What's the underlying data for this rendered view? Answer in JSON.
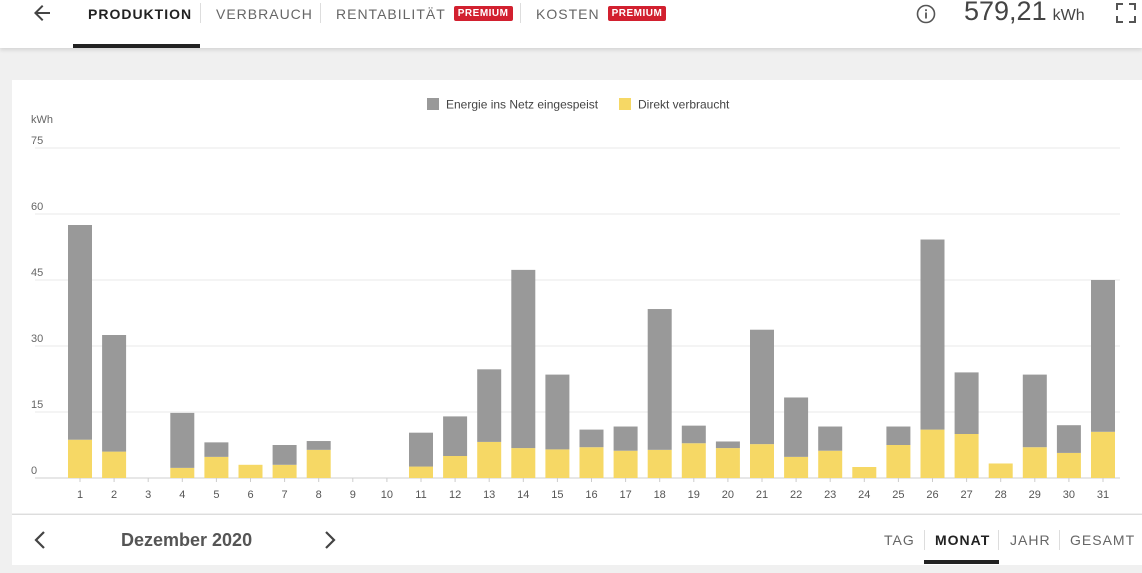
{
  "header": {
    "tabs": [
      {
        "label": "PRODUKTION",
        "active": true,
        "badge": ""
      },
      {
        "label": "VERBRAUCH",
        "active": false,
        "badge": ""
      },
      {
        "label": "RENTABILITÄT",
        "active": false,
        "badge": "PREMIUM"
      },
      {
        "label": "KOSTEN",
        "active": false,
        "badge": "PREMIUM"
      }
    ],
    "total_value": "579,21",
    "total_unit": "kWh"
  },
  "footer": {
    "period_label": "Dezember 2020",
    "range_tabs": [
      {
        "label": "TAG",
        "active": false
      },
      {
        "label": "MONAT",
        "active": true
      },
      {
        "label": "JAHR",
        "active": false
      },
      {
        "label": "GESAMT",
        "active": false
      }
    ]
  },
  "colors": {
    "grid": "#999999",
    "direct": "#f6d865",
    "badge": "#d2202f"
  },
  "icons": {
    "back": "arrow-left-icon",
    "info": "info-icon",
    "fullscreen": "fullscreen-icon",
    "prev": "chevron-left-icon",
    "next": "chevron-right-icon"
  },
  "chart_data": {
    "type": "bar",
    "stacked": true,
    "ylabel": "kWh",
    "ylim": [
      0,
      75
    ],
    "yticks": [
      0,
      15,
      30,
      45,
      60,
      75
    ],
    "grid": true,
    "legend_position": "top-center",
    "categories": [
      "1",
      "2",
      "3",
      "4",
      "5",
      "6",
      "7",
      "8",
      "9",
      "10",
      "11",
      "12",
      "13",
      "14",
      "15",
      "16",
      "17",
      "18",
      "19",
      "20",
      "21",
      "22",
      "23",
      "24",
      "25",
      "26",
      "27",
      "28",
      "29",
      "30",
      "31"
    ],
    "series": [
      {
        "name": "Direkt verbraucht",
        "color": "#f6d865",
        "values": [
          8.7,
          6,
          0,
          2.3,
          4.8,
          3,
          3,
          6.4,
          0,
          0,
          2.6,
          5,
          8.2,
          6.8,
          6.5,
          7,
          6.2,
          6.4,
          7.9,
          6.8,
          7.7,
          4.8,
          6.2,
          2.5,
          7.5,
          11,
          10,
          3.3,
          7,
          5.7,
          10.5
        ]
      },
      {
        "name": "Energie ins Netz eingespeist",
        "color": "#999999",
        "values": [
          48.8,
          26.5,
          0,
          12.5,
          3.3,
          0,
          4.5,
          2,
          0,
          0,
          7.7,
          9,
          16.5,
          40.5,
          17,
          4,
          5.5,
          32,
          4,
          1.5,
          26,
          13.5,
          5.5,
          0,
          4.2,
          43.2,
          14,
          0,
          16.5,
          6.3,
          34.5
        ]
      }
    ]
  }
}
